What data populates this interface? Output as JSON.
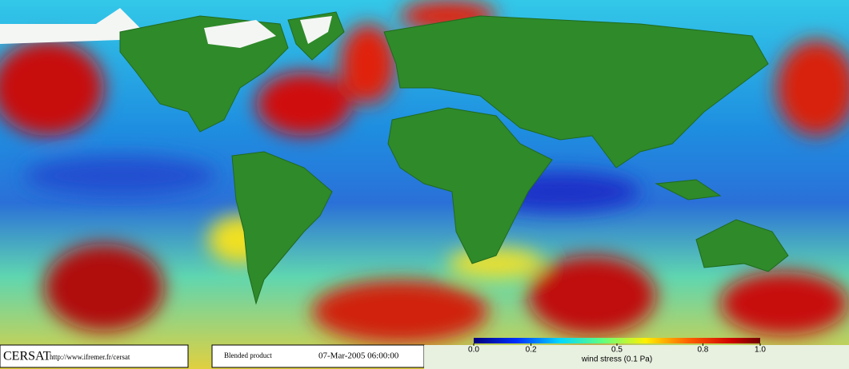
{
  "footer": {
    "logo": "CERSAT",
    "url": "http://www.ifremer.fr/cersat",
    "product": "Blended product",
    "date": "07-Mar-2005 06:00:00"
  },
  "colorbar": {
    "label": "wind stress (0.1 Pa)",
    "range": [
      0,
      1
    ],
    "ticks": [
      {
        "value": 0,
        "label": "0.0"
      },
      {
        "value": 0.2,
        "label": "0.2"
      },
      {
        "value": 0.5,
        "label": "0.5"
      },
      {
        "value": 0.8,
        "label": "0.8"
      },
      {
        "value": 1,
        "label": "1.0"
      }
    ]
  }
}
